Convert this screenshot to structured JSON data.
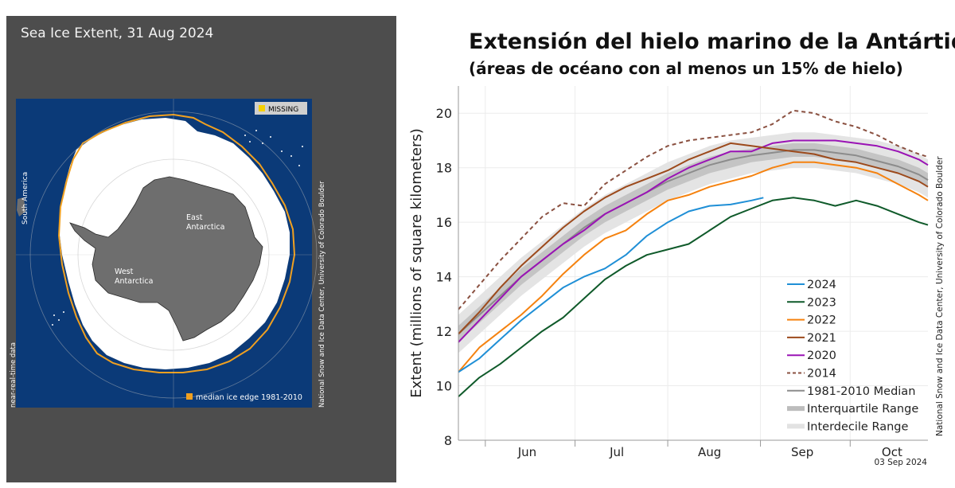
{
  "map": {
    "title": "Sea Ice Extent, 31 Aug 2024",
    "missing_label": "MISSING",
    "legend_median_edge": "median ice edge 1981-2010",
    "side_credit": "National Snow and Ice Data Center, University of Colorado Boulder",
    "near_real_time": "near-real-time data",
    "labels": {
      "south_america": "South America",
      "east": "East\nAntarctica",
      "west": "West\nAntarctica"
    },
    "colors": {
      "ocean": "#0b3a78",
      "ice": "#ffffff",
      "land": "#6e6e6e",
      "median_edge": "#f0a020",
      "missing": "#f5d000",
      "panel": "#4d4d4d"
    }
  },
  "chart_data": {
    "type": "line",
    "title": "Extensión del hielo marino de la Antártida",
    "subtitle": "(áreas de océano con al menos un 15% de hielo)",
    "ylabel": "Extent (millions of square kilometers)",
    "xlabel": "",
    "ylim": [
      8,
      21
    ],
    "yticks": [
      8,
      10,
      12,
      14,
      16,
      18,
      20
    ],
    "xlim_day_of_year": [
      143,
      300
    ],
    "month_ticks": [
      {
        "label": "Jun",
        "day": 166
      },
      {
        "label": "Jul",
        "day": 196
      },
      {
        "label": "Aug",
        "day": 227
      },
      {
        "label": "Sep",
        "day": 258
      },
      {
        "label": "Oct",
        "day": 288
      }
    ],
    "month_boundaries": [
      152,
      182,
      213,
      244,
      274
    ],
    "date_label": "03 Sep 2024",
    "side_credit": "National Snow and Ice Data Center, University of Colorado Boulder",
    "x_days": [
      143,
      150,
      157,
      164,
      171,
      178,
      185,
      192,
      199,
      206,
      213,
      220,
      227,
      234,
      241,
      248,
      255,
      262,
      269,
      276,
      283,
      290,
      297,
      300
    ],
    "interdecile": {
      "low": [
        11.2,
        11.9,
        12.6,
        13.3,
        13.9,
        14.5,
        15.1,
        15.6,
        16.0,
        16.4,
        16.8,
        17.1,
        17.4,
        17.6,
        17.8,
        17.9,
        18.0,
        18.0,
        17.9,
        17.8,
        17.6,
        17.4,
        17.1,
        16.9
      ],
      "high": [
        12.6,
        13.3,
        14.0,
        14.7,
        15.3,
        15.9,
        16.5,
        17.0,
        17.4,
        17.8,
        18.2,
        18.5,
        18.8,
        19.0,
        19.1,
        19.2,
        19.3,
        19.3,
        19.2,
        19.1,
        19.0,
        18.8,
        18.5,
        18.3
      ]
    },
    "interquartile": {
      "low": [
        11.6,
        12.3,
        13.0,
        13.7,
        14.3,
        14.9,
        15.5,
        16.0,
        16.4,
        16.8,
        17.2,
        17.5,
        17.8,
        18.0,
        18.2,
        18.3,
        18.4,
        18.4,
        18.3,
        18.2,
        18.0,
        17.8,
        17.5,
        17.3
      ],
      "high": [
        12.2,
        12.9,
        13.6,
        14.3,
        14.9,
        15.5,
        16.1,
        16.6,
        17.0,
        17.4,
        17.8,
        18.1,
        18.4,
        18.6,
        18.7,
        18.8,
        18.9,
        18.9,
        18.8,
        18.7,
        18.5,
        18.3,
        18.0,
        17.8
      ]
    },
    "series": [
      {
        "name": "2024",
        "color": "#1f8fd6",
        "dash": false,
        "x": [
          143,
          150,
          157,
          164,
          171,
          178,
          185,
          192,
          199,
          206,
          213,
          220,
          227,
          234,
          241,
          245
        ],
        "values": [
          10.5,
          11.0,
          11.7,
          12.4,
          13.0,
          13.6,
          14.0,
          14.3,
          14.8,
          15.5,
          16.0,
          16.4,
          16.6,
          16.65,
          16.8,
          16.9
        ]
      },
      {
        "name": "2023",
        "color": "#0f5a2a",
        "dash": false,
        "x": [
          143,
          150,
          157,
          164,
          171,
          178,
          185,
          192,
          199,
          206,
          213,
          220,
          227,
          234,
          241,
          248,
          255,
          262,
          269,
          276,
          283,
          290,
          297,
          300
        ],
        "values": [
          9.6,
          10.3,
          10.8,
          11.4,
          12.0,
          12.5,
          13.2,
          13.9,
          14.4,
          14.8,
          15.0,
          15.2,
          15.7,
          16.2,
          16.5,
          16.8,
          16.9,
          16.8,
          16.6,
          16.8,
          16.6,
          16.3,
          16.0,
          15.9
        ]
      },
      {
        "name": "2022",
        "color": "#f5820f",
        "dash": false,
        "x": [
          143,
          150,
          157,
          164,
          171,
          178,
          185,
          192,
          199,
          206,
          213,
          220,
          227,
          234,
          241,
          248,
          255,
          262,
          269,
          276,
          283,
          290,
          297,
          300
        ],
        "values": [
          10.5,
          11.4,
          12.0,
          12.6,
          13.3,
          14.1,
          14.8,
          15.4,
          15.7,
          16.3,
          16.8,
          17.0,
          17.3,
          17.5,
          17.7,
          18.0,
          18.2,
          18.2,
          18.1,
          18.0,
          17.8,
          17.4,
          17.0,
          16.8
        ]
      },
      {
        "name": "2021",
        "color": "#9c4a1c",
        "dash": false,
        "x": [
          143,
          150,
          157,
          164,
          171,
          178,
          185,
          192,
          199,
          206,
          213,
          220,
          227,
          234,
          241,
          248,
          255,
          262,
          269,
          276,
          283,
          290,
          297,
          300
        ],
        "values": [
          11.9,
          12.7,
          13.6,
          14.4,
          15.1,
          15.8,
          16.4,
          16.9,
          17.3,
          17.6,
          17.9,
          18.3,
          18.6,
          18.9,
          18.8,
          18.7,
          18.6,
          18.5,
          18.3,
          18.2,
          18.0,
          17.8,
          17.5,
          17.3
        ]
      },
      {
        "name": "2020",
        "color": "#9a13b5",
        "dash": false,
        "x": [
          143,
          150,
          157,
          164,
          171,
          178,
          185,
          192,
          199,
          206,
          213,
          220,
          227,
          234,
          241,
          248,
          255,
          262,
          269,
          276,
          283,
          290,
          297,
          300
        ],
        "values": [
          11.6,
          12.4,
          13.2,
          14.0,
          14.6,
          15.2,
          15.7,
          16.3,
          16.7,
          17.1,
          17.6,
          18.0,
          18.3,
          18.6,
          18.6,
          18.9,
          19.0,
          19.0,
          19.0,
          18.9,
          18.8,
          18.6,
          18.3,
          18.1
        ]
      },
      {
        "name": "2014",
        "color": "#8a5040",
        "dash": true,
        "x": [
          143,
          150,
          157,
          164,
          171,
          178,
          185,
          192,
          199,
          206,
          213,
          220,
          227,
          234,
          241,
          248,
          255,
          262,
          269,
          276,
          283,
          290,
          297,
          300
        ],
        "values": [
          12.8,
          13.7,
          14.6,
          15.4,
          16.2,
          16.7,
          16.6,
          17.4,
          17.9,
          18.4,
          18.8,
          19.0,
          19.1,
          19.2,
          19.3,
          19.6,
          20.1,
          20.0,
          19.7,
          19.5,
          19.2,
          18.8,
          18.5,
          18.4
        ]
      },
      {
        "name": "1981-2010 Median",
        "color": "#8c8c8c",
        "dash": false,
        "x": [
          143,
          150,
          157,
          164,
          171,
          178,
          185,
          192,
          199,
          206,
          213,
          220,
          227,
          234,
          241,
          248,
          255,
          262,
          269,
          276,
          283,
          290,
          297,
          300
        ],
        "values": [
          11.9,
          12.6,
          13.3,
          14.0,
          14.6,
          15.2,
          15.8,
          16.3,
          16.7,
          17.1,
          17.5,
          17.8,
          18.1,
          18.3,
          18.45,
          18.55,
          18.65,
          18.65,
          18.55,
          18.45,
          18.25,
          18.05,
          17.75,
          17.55
        ]
      }
    ],
    "legend": [
      {
        "label": "2024",
        "kind": "line",
        "color": "#1f8fd6"
      },
      {
        "label": "2023",
        "kind": "line",
        "color": "#0f5a2a"
      },
      {
        "label": "2022",
        "kind": "line",
        "color": "#f5820f"
      },
      {
        "label": "2021",
        "kind": "line",
        "color": "#9c4a1c"
      },
      {
        "label": "2020",
        "kind": "line",
        "color": "#9a13b5"
      },
      {
        "label": "2014",
        "kind": "dash",
        "color": "#8a5040"
      },
      {
        "label": "1981-2010 Median",
        "kind": "line",
        "color": "#8c8c8c"
      },
      {
        "label": "Interquartile Range",
        "kind": "band",
        "color": "#bdbdbd"
      },
      {
        "label": "Interdecile Range",
        "kind": "band",
        "color": "#e2e2e2"
      }
    ],
    "legend_position": "lower-right"
  }
}
